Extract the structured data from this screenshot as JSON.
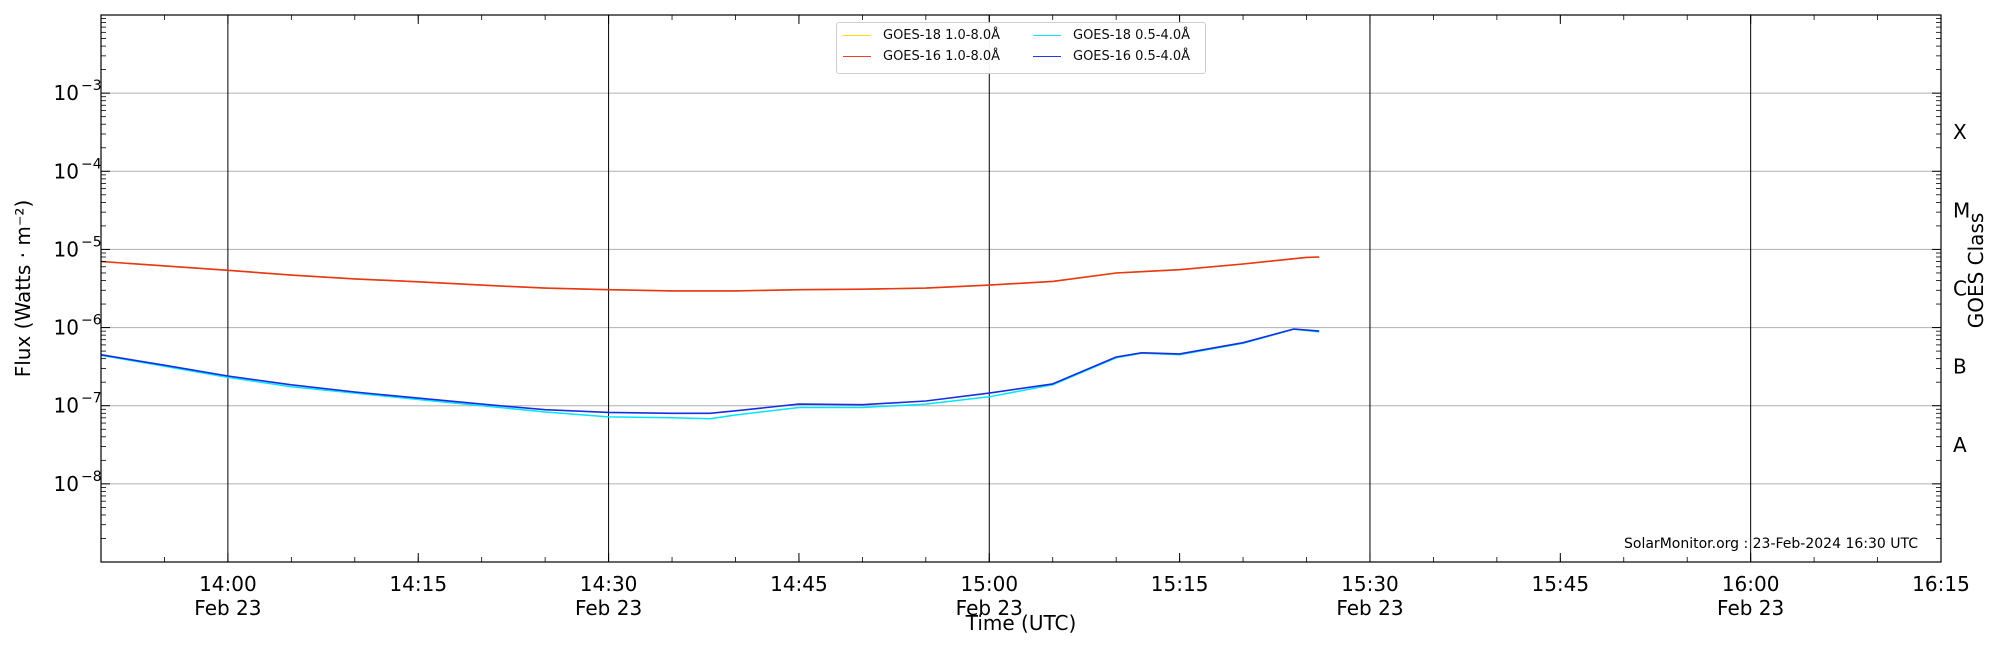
{
  "chart_data": {
    "type": "line",
    "xlabel": "Time (UTC)",
    "ylabel": "Flux (Watts · m⁻²)",
    "y2label": "GOES Class",
    "yscale": "log",
    "ylim": [
      1e-09,
      0.01
    ],
    "xlim": [
      "2024-02-23T13:50",
      "2024-02-23T16:15"
    ],
    "grid": "horizontal at decades, vertical at half hours",
    "legend_position": "top-center",
    "y_ticks": [
      {
        "value": 1e-08,
        "mantissa": "10",
        "exponent": "−8"
      },
      {
        "value": 1e-07,
        "mantissa": "10",
        "exponent": "−7"
      },
      {
        "value": 1e-06,
        "mantissa": "10",
        "exponent": "−6"
      },
      {
        "value": 1e-05,
        "mantissa": "10",
        "exponent": "−5"
      },
      {
        "value": 0.0001,
        "mantissa": "10",
        "exponent": "−4"
      },
      {
        "value": 0.001,
        "mantissa": "10",
        "exponent": "−3"
      }
    ],
    "x_ticks": [
      {
        "time": "2024-02-23T14:00",
        "label": "14:00",
        "date": "Feb 23",
        "vline": true
      },
      {
        "time": "2024-02-23T14:15",
        "label": "14:15",
        "date": "",
        "vline": false
      },
      {
        "time": "2024-02-23T14:30",
        "label": "14:30",
        "date": "Feb 23",
        "vline": true
      },
      {
        "time": "2024-02-23T14:45",
        "label": "14:45",
        "date": "",
        "vline": false
      },
      {
        "time": "2024-02-23T15:00",
        "label": "15:00",
        "date": "Feb 23",
        "vline": true
      },
      {
        "time": "2024-02-23T15:15",
        "label": "15:15",
        "date": "",
        "vline": false
      },
      {
        "time": "2024-02-23T15:30",
        "label": "15:30",
        "date": "Feb 23",
        "vline": true
      },
      {
        "time": "2024-02-23T15:45",
        "label": "15:45",
        "date": "",
        "vline": false
      },
      {
        "time": "2024-02-23T16:00",
        "label": "16:00",
        "date": "Feb 23",
        "vline": true
      },
      {
        "time": "2024-02-23T16:15",
        "label": "16:15",
        "date": "",
        "vline": false
      }
    ],
    "goes_classes": [
      {
        "label": "A",
        "value": 1e-08
      },
      {
        "label": "B",
        "value": 1e-07
      },
      {
        "label": "C",
        "value": 1e-06
      },
      {
        "label": "M",
        "value": 1e-05
      },
      {
        "label": "X",
        "value": 0.0001
      }
    ],
    "series": [
      {
        "name": "GOES-18 1.0-8.0Å",
        "color": "#ffd700",
        "x": [
          "13:50",
          "14:00",
          "14:05",
          "14:10",
          "14:15",
          "14:20",
          "14:25",
          "14:30",
          "14:35",
          "14:40",
          "14:45",
          "14:50",
          "14:55",
          "15:00",
          "15:05",
          "15:10",
          "15:15",
          "15:20",
          "15:25",
          "15:26"
        ],
        "y": [
          7e-06,
          5.4e-06,
          4.7e-06,
          4.2e-06,
          3.85e-06,
          3.5e-06,
          3.2e-06,
          3.05e-06,
          2.95e-06,
          2.95e-06,
          3.05e-06,
          3.1e-06,
          3.2e-06,
          3.5e-06,
          3.9e-06,
          5e-06,
          5.5e-06,
          6.5e-06,
          7.9e-06,
          8e-06
        ]
      },
      {
        "name": "GOES-16 1.0-8.0Å",
        "color": "#e8361c",
        "x": [
          "13:50",
          "14:00",
          "14:05",
          "14:10",
          "14:15",
          "14:20",
          "14:25",
          "14:30",
          "14:35",
          "14:40",
          "14:45",
          "14:50",
          "14:55",
          "15:00",
          "15:05",
          "15:10",
          "15:15",
          "15:20",
          "15:25",
          "15:26"
        ],
        "y": [
          7e-06,
          5.4e-06,
          4.7e-06,
          4.2e-06,
          3.85e-06,
          3.5e-06,
          3.2e-06,
          3.05e-06,
          2.95e-06,
          2.95e-06,
          3.05e-06,
          3.1e-06,
          3.2e-06,
          3.5e-06,
          3.9e-06,
          5e-06,
          5.5e-06,
          6.5e-06,
          7.9e-06,
          8e-06
        ]
      },
      {
        "name": "GOES-18 0.5-4.0Å",
        "color": "#00e5ff",
        "x": [
          "13:50",
          "13:55",
          "14:00",
          "14:05",
          "14:10",
          "14:15",
          "14:20",
          "14:25",
          "14:30",
          "14:35",
          "14:38",
          "14:40",
          "14:45",
          "14:50",
          "14:55",
          "15:00",
          "15:05",
          "15:10",
          "15:12",
          "15:15",
          "15:20",
          "15:24",
          "15:26"
        ],
        "y": [
          4.4e-07,
          3.2e-07,
          2.3e-07,
          1.75e-07,
          1.45e-07,
          1.2e-07,
          1e-07,
          8.3e-08,
          7.2e-08,
          7e-08,
          6.8e-08,
          7.6e-08,
          9.5e-08,
          9.5e-08,
          1.05e-07,
          1.3e-07,
          1.85e-07,
          4.1e-07,
          4.7e-07,
          4.5e-07,
          6.3e-07,
          9.5e-07,
          8.8e-07
        ]
      },
      {
        "name": "GOES-16 0.5-4.0Å",
        "color": "#1a2ee0",
        "x": [
          "13:50",
          "13:55",
          "14:00",
          "14:05",
          "14:10",
          "14:15",
          "14:20",
          "14:25",
          "14:30",
          "14:35",
          "14:38",
          "14:40",
          "14:45",
          "14:50",
          "14:55",
          "15:00",
          "15:05",
          "15:10",
          "15:12",
          "15:15",
          "15:20",
          "15:24",
          "15:26"
        ],
        "y": [
          4.5e-07,
          3.3e-07,
          2.4e-07,
          1.85e-07,
          1.5e-07,
          1.25e-07,
          1.05e-07,
          8.9e-08,
          8.2e-08,
          8e-08,
          8e-08,
          8.6e-08,
          1.05e-07,
          1.03e-07,
          1.15e-07,
          1.45e-07,
          1.9e-07,
          4.2e-07,
          4.75e-07,
          4.6e-07,
          6.4e-07,
          9.6e-07,
          9e-07
        ]
      }
    ],
    "legend": [
      {
        "label": "GOES-18 1.0-8.0Å",
        "color": "#ffd700"
      },
      {
        "label": "GOES-16 1.0-8.0Å",
        "color": "#e8361c"
      },
      {
        "label": "GOES-18 0.5-4.0Å",
        "color": "#00e5ff"
      },
      {
        "label": "GOES-16 0.5-4.0Å",
        "color": "#1a2ee0"
      }
    ],
    "credit": "SolarMonitor.org : 23-Feb-2024 16:30 UTC"
  }
}
